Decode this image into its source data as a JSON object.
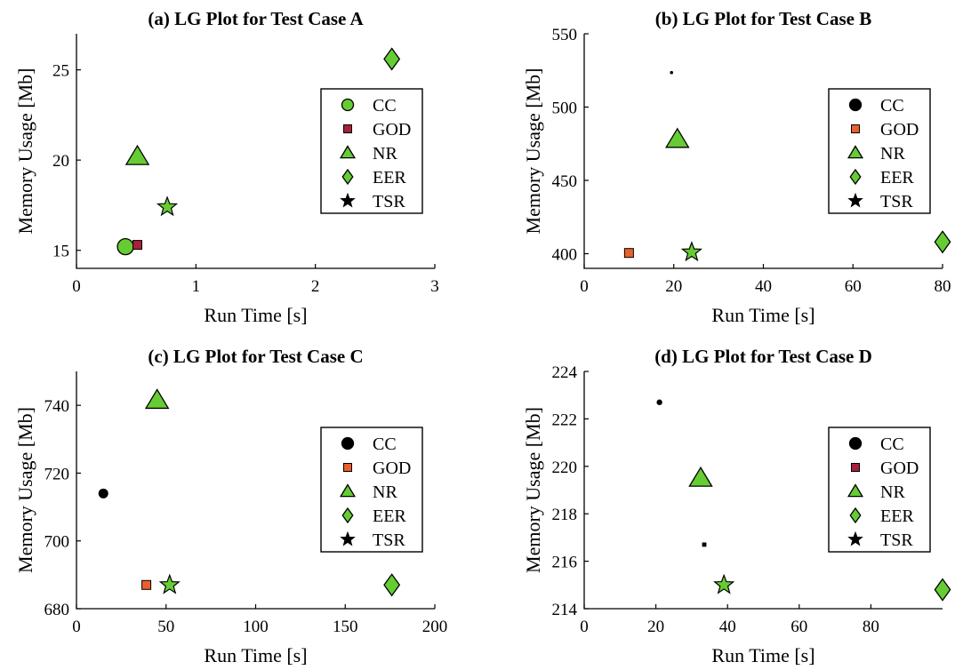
{
  "colors": {
    "green": "#66cc33",
    "orange": "#e8602c",
    "maroon": "#a8203c",
    "black": "#000000"
  },
  "chart_data": [
    {
      "type": "scatter",
      "title": "(a) LG Plot for Test Case A",
      "xlabel": "Run Time [s]",
      "ylabel": "Memory Usage [Mb]",
      "xlim": [
        0,
        3
      ],
      "ylim": [
        14,
        27
      ],
      "xticks": [
        0,
        1,
        2,
        3
      ],
      "yticks": [
        15,
        20,
        25
      ],
      "xtick_labels": [
        "0",
        "1",
        "2",
        "3"
      ],
      "ytick_labels": [
        "15",
        "20",
        "25"
      ],
      "legend_position": "right",
      "series": [
        {
          "name": "CC",
          "marker": "circle",
          "color": "green",
          "x": 0.41,
          "y": 15.2
        },
        {
          "name": "GOD",
          "marker": "square",
          "color": "maroon",
          "x": 0.51,
          "y": 15.3
        },
        {
          "name": "NR",
          "marker": "triangle",
          "color": "green",
          "x": 0.51,
          "y": 20.2
        },
        {
          "name": "EER",
          "marker": "diamond",
          "color": "green",
          "x": 2.64,
          "y": 25.6
        },
        {
          "name": "TSR",
          "marker": "star",
          "color": "green",
          "x": 0.76,
          "y": 17.4
        }
      ]
    },
    {
      "type": "scatter",
      "title": "(b) LG Plot for Test Case B",
      "xlabel": "Run Time [s]",
      "ylabel": "Memory Usage [Mb]",
      "xlim": [
        0,
        80
      ],
      "ylim": [
        390,
        550
      ],
      "xticks": [
        0,
        20,
        40,
        60,
        80
      ],
      "yticks": [
        400,
        450,
        500,
        550
      ],
      "xtick_labels": [
        "0",
        "20",
        "40",
        "60",
        "80"
      ],
      "ytick_labels": [
        "400",
        "450",
        "500",
        "550"
      ],
      "legend_position": "right",
      "series": [
        {
          "name": "CC",
          "marker": "circle",
          "color": "black",
          "x": 19.5,
          "y": 523.5
        },
        {
          "name": "GOD",
          "marker": "square",
          "color": "orange",
          "x": 10,
          "y": 400.5
        },
        {
          "name": "NR",
          "marker": "triangle",
          "color": "green",
          "x": 20.8,
          "y": 478
        },
        {
          "name": "EER",
          "marker": "diamond",
          "color": "green",
          "x": 80,
          "y": 408
        },
        {
          "name": "TSR",
          "marker": "star",
          "color": "green",
          "x": 24,
          "y": 401
        }
      ]
    },
    {
      "type": "scatter",
      "title": "(c) LG Plot for Test Case C",
      "xlabel": "Run Time [s]",
      "ylabel": "Memory Usage [Mb]",
      "xlim": [
        0,
        200
      ],
      "ylim": [
        680,
        750
      ],
      "xticks": [
        0,
        50,
        100,
        150,
        200
      ],
      "yticks": [
        680,
        700,
        720,
        740
      ],
      "xtick_labels": [
        "0",
        "50",
        "100",
        "150",
        "200"
      ],
      "ytick_labels": [
        "680",
        "700",
        "720",
        "740"
      ],
      "legend_position": "right",
      "series": [
        {
          "name": "CC",
          "marker": "circle",
          "color": "black",
          "x": 15,
          "y": 714
        },
        {
          "name": "GOD",
          "marker": "square",
          "color": "orange",
          "x": 39,
          "y": 687
        },
        {
          "name": "NR",
          "marker": "triangle",
          "color": "green",
          "x": 45,
          "y": 741.5
        },
        {
          "name": "EER",
          "marker": "diamond",
          "color": "green",
          "x": 176,
          "y": 687
        },
        {
          "name": "TSR",
          "marker": "star",
          "color": "green",
          "x": 52,
          "y": 687
        }
      ]
    },
    {
      "type": "scatter",
      "title": "(d) LG Plot for Test Case D",
      "xlabel": "Run Time [s]",
      "ylabel": "Memory Usage [Mb]",
      "xlim": [
        0,
        100
      ],
      "ylim": [
        214,
        224
      ],
      "xticks": [
        0,
        20,
        40,
        60,
        80
      ],
      "yticks": [
        214,
        216,
        218,
        220,
        222,
        224
      ],
      "xtick_labels": [
        "0",
        "20",
        "40",
        "60",
        "80"
      ],
      "ytick_labels": [
        "214",
        "216",
        "218",
        "220",
        "222",
        "224"
      ],
      "legend_position": "right",
      "series": [
        {
          "name": "CC",
          "marker": "circle",
          "color": "black",
          "x": 21,
          "y": 222.7
        },
        {
          "name": "GOD",
          "marker": "square",
          "color": "maroon",
          "x": 33.5,
          "y": 216.7
        },
        {
          "name": "NR",
          "marker": "triangle",
          "color": "green",
          "x": 32.5,
          "y": 219.5
        },
        {
          "name": "EER",
          "marker": "diamond",
          "color": "green",
          "x": 100,
          "y": 214.8
        },
        {
          "name": "TSR",
          "marker": "star",
          "color": "green",
          "x": 39,
          "y": 215
        }
      ]
    }
  ]
}
